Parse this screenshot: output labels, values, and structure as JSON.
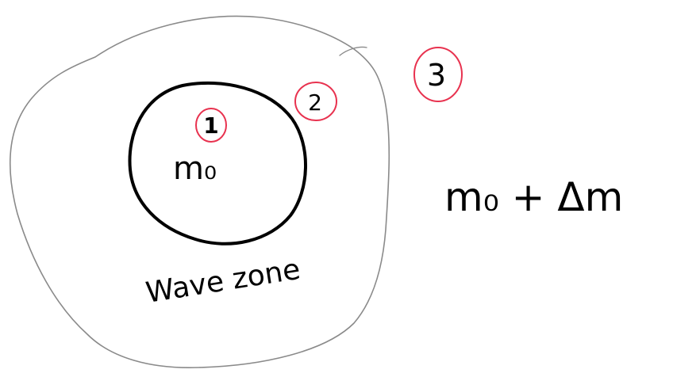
{
  "colors": {
    "background": "#ffffff",
    "ink": "#000000",
    "outer_boundary": "#8a8a8a",
    "marker": "#e8324f"
  },
  "labels": {
    "inner_mass": "m₀",
    "zone": "Wave zone",
    "outer_mass": "m₀ + Δm"
  },
  "markers": {
    "region_1": "1",
    "region_2": "2",
    "region_3": "3"
  }
}
